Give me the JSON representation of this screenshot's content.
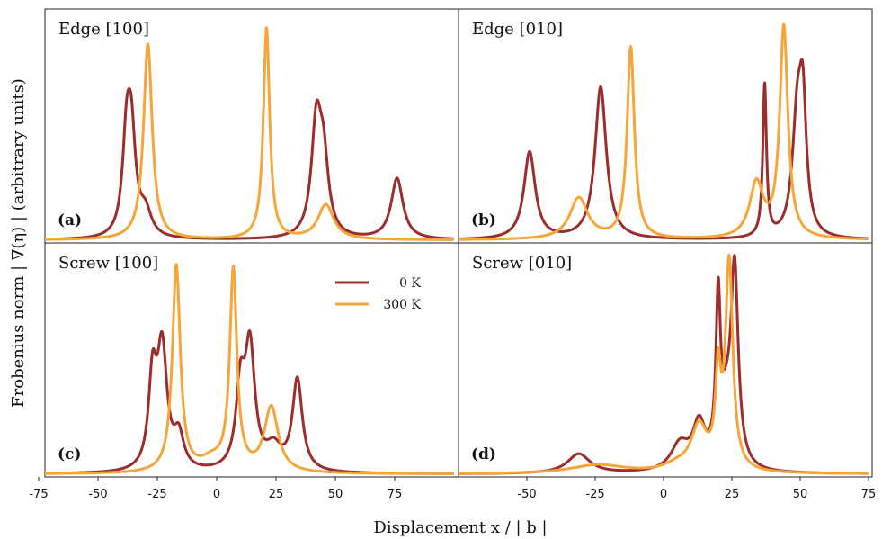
{
  "figure": {
    "ylabel": "Frobenius norm | ∇(η) | (arbitrary units)",
    "xlabel": "Displacement x /  | b |",
    "colors": {
      "0K": "#9b2d2d",
      "300K": "#f5a53a"
    },
    "legend": {
      "placement": "top-right of panel (c)"
    }
  },
  "chart_data": [
    {
      "type": "line",
      "panel": "a",
      "title": "Edge [100]",
      "tag": "(a)",
      "xlim": [
        -75,
        100
      ],
      "ylim": [
        0,
        1.05
      ],
      "grid": false,
      "series": [
        {
          "name": "0 K",
          "peaks": [
            [
              -38,
              0.38,
              2.0
            ],
            [
              -36,
              0.45,
              2.2
            ],
            [
              -30,
              0.11,
              3.0
            ],
            [
              42,
              0.5,
              2.5
            ],
            [
              45,
              0.32,
              2.5
            ],
            [
              76,
              0.28,
              3.0
            ]
          ]
        },
        {
          "name": "300 K",
          "peaks": [
            [
              -29,
              0.9,
              2.2
            ],
            [
              21,
              0.97,
              1.6
            ],
            [
              46,
              0.16,
              4.0
            ]
          ]
        }
      ]
    },
    {
      "type": "line",
      "panel": "b",
      "title": "Edge [010]",
      "tag": "(b)",
      "xlim": [
        -75,
        75
      ],
      "ylim": [
        0,
        1.05
      ],
      "grid": false,
      "series": [
        {
          "name": "0 K",
          "peaks": [
            [
              -49,
              0.4,
              2.5
            ],
            [
              -23,
              0.7,
              2.5
            ],
            [
              37,
              0.7,
              0.8
            ],
            [
              49,
              0.55,
              2.2
            ],
            [
              51,
              0.5,
              1.5
            ]
          ]
        },
        {
          "name": "300 K",
          "peaks": [
            [
              -31,
              0.19,
              4.0
            ],
            [
              -12,
              0.88,
              1.6
            ],
            [
              34,
              0.25,
              3.0
            ],
            [
              44,
              0.97,
              1.8
            ]
          ]
        }
      ]
    },
    {
      "type": "line",
      "panel": "c",
      "title": "Screw [100]",
      "tag": "(c)",
      "xlim": [
        -75,
        100
      ],
      "ylim": [
        0,
        1.05
      ],
      "grid": false,
      "series": [
        {
          "name": "0 K",
          "peaks": [
            [
              -27,
              0.4,
              2.0
            ],
            [
              -23,
              0.55,
              2.5
            ],
            [
              -16,
              0.15,
              2.5
            ],
            [
              10,
              0.35,
              2.2
            ],
            [
              14,
              0.55,
              2.5
            ],
            [
              24,
              0.1,
              4.0
            ],
            [
              34,
              0.42,
              2.5
            ]
          ]
        },
        {
          "name": "300 K",
          "peaks": [
            [
              -17,
              0.95,
              2.0
            ],
            [
              7,
              0.92,
              1.8
            ],
            [
              23,
              0.3,
              3.5
            ],
            [
              -2,
              0.05,
              6.0
            ]
          ]
        }
      ]
    },
    {
      "type": "line",
      "panel": "d",
      "title": "Screw [010]",
      "tag": "(d)",
      "xlim": [
        -75,
        75
      ],
      "ylim": [
        0,
        1.05
      ],
      "grid": false,
      "series": [
        {
          "name": "0 K",
          "peaks": [
            [
              -31,
              0.09,
              5.0
            ],
            [
              6,
              0.12,
              4.0
            ],
            [
              13,
              0.2,
              2.8
            ],
            [
              20,
              0.72,
              1.0
            ],
            [
              26,
              0.88,
              1.6
            ],
            [
              23,
              0.22,
              2.5
            ]
          ]
        },
        {
          "name": "300 K",
          "peaks": [
            [
              -24,
              0.04,
              12.0
            ],
            [
              13,
              0.2,
              3.5
            ],
            [
              20,
              0.4,
              1.2
            ],
            [
              24,
              0.95,
              1.6
            ],
            [
              5,
              0.03,
              6.0
            ]
          ]
        }
      ]
    }
  ],
  "ticks": {
    "left": [
      -75,
      -50,
      -25,
      0,
      25,
      50,
      75
    ],
    "right": [
      -50,
      -25,
      0,
      25,
      50,
      75
    ]
  }
}
